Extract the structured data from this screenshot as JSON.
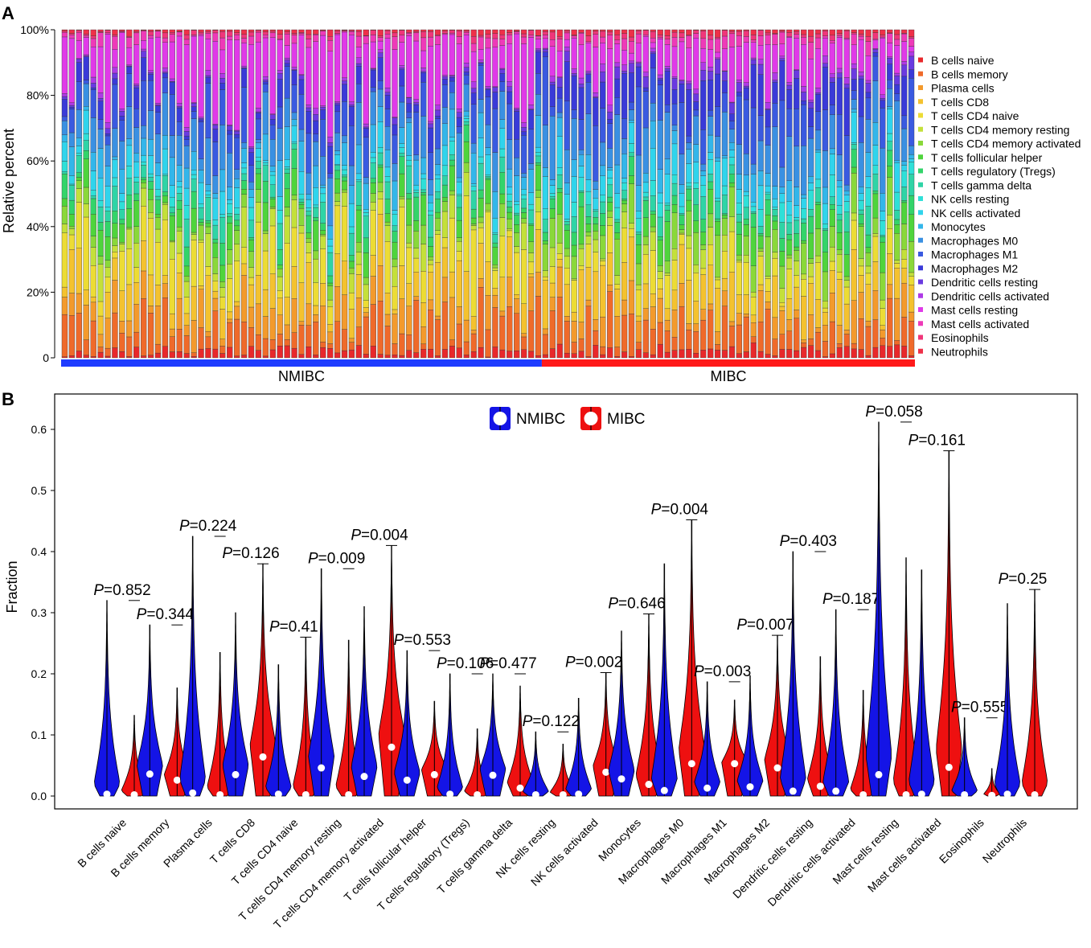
{
  "panel_a": {
    "letter": "A",
    "ylabel": "Relative percent",
    "yticks": [
      "0",
      "20%",
      "40%",
      "60%",
      "80%",
      "100%"
    ],
    "groups": [
      {
        "label": "NMIBC",
        "color": "#1f3cff",
        "count": 67
      },
      {
        "label": "MIBC",
        "color": "#ff1a1a",
        "count": 52
      }
    ],
    "cell_types": [
      {
        "name": "B cells naive",
        "color": "#e8282b"
      },
      {
        "name": "B cells memory",
        "color": "#ef6a2a"
      },
      {
        "name": "Plasma cells",
        "color": "#f39a2c"
      },
      {
        "name": "T cells CD8",
        "color": "#f4c22f"
      },
      {
        "name": "T cells CD4 naive",
        "color": "#ecdc35"
      },
      {
        "name": "T cells CD4 memory resting",
        "color": "#c4e03a"
      },
      {
        "name": "T cells CD4 memory activated",
        "color": "#8ad83a"
      },
      {
        "name": "T cells follicular helper",
        "color": "#4fd43c"
      },
      {
        "name": "T cells regulatory (Tregs)",
        "color": "#33d46a"
      },
      {
        "name": "T cells gamma delta",
        "color": "#2fd4a6"
      },
      {
        "name": "NK cells resting",
        "color": "#2fe0d8"
      },
      {
        "name": "NK cells activated",
        "color": "#30d4ec"
      },
      {
        "name": "Monocytes",
        "color": "#33b6ea"
      },
      {
        "name": "Macrophages M0",
        "color": "#3a90e2"
      },
      {
        "name": "Macrophages M1",
        "color": "#3a5ae0"
      },
      {
        "name": "Macrophages M2",
        "color": "#3a3ad8"
      },
      {
        "name": "Dendritic cells resting",
        "color": "#6a3ae0"
      },
      {
        "name": "Dendritic cells activated",
        "color": "#ae3ae6"
      },
      {
        "name": "Mast cells resting",
        "color": "#e03ae8"
      },
      {
        "name": "Mast cells activated",
        "color": "#ee3ab8"
      },
      {
        "name": "Eosinophils",
        "color": "#f0367a"
      },
      {
        "name": "Neutrophils",
        "color": "#ee3048"
      }
    ]
  },
  "panel_b": {
    "letter": "B",
    "legend": [
      {
        "label": "NMIBC",
        "color": "#1414e6"
      },
      {
        "label": "MIBC",
        "color": "#ee1010"
      }
    ]
  },
  "chart_data": [
    {
      "type": "bar",
      "stacked": true,
      "title": "",
      "ylabel": "Relative percent",
      "xlabel": "",
      "ylim": [
        0,
        100
      ],
      "series_order": [
        "B cells naive",
        "B cells memory",
        "Plasma cells",
        "T cells CD8",
        "T cells CD4 naive",
        "T cells CD4 memory resting",
        "T cells CD4 memory activated",
        "T cells follicular helper",
        "T cells regulatory (Tregs)",
        "T cells gamma delta",
        "NK cells resting",
        "NK cells activated",
        "Monocytes",
        "Macrophages M0",
        "Macrophages M1",
        "Macrophages M2",
        "Dendritic cells resting",
        "Dendritic cells activated",
        "Mast cells resting",
        "Mast cells activated",
        "Eosinophils",
        "Neutrophils"
      ],
      "groups": [
        {
          "label": "NMIBC",
          "n_samples": 67
        },
        {
          "label": "MIBC",
          "n_samples": 52
        }
      ],
      "note": "119 stacked bars, each summing to 100%; individual sample fractions estimated"
    },
    {
      "type": "violin",
      "ylabel": "Fraction",
      "ylim": [
        0,
        0.65
      ],
      "yticks": [
        0.0,
        0.1,
        0.2,
        0.3,
        0.4,
        0.5,
        0.6
      ],
      "categories": [
        "B cells naive",
        "B cells memory",
        "Plasma cells",
        "T cells CD8",
        "T cells CD4 naive",
        "T cells CD4 memory resting",
        "T cells CD4 memory activated",
        "T cells follicular helper",
        "T cells regulatory (Tregs)",
        "T cells gamma delta",
        "NK cells resting",
        "NK cells activated",
        "Monocytes",
        "Macrophages M0",
        "Macrophages M1",
        "Macrophages M2",
        "Dendritic cells resting",
        "Dendritic cells activated",
        "Mast cells resting",
        "Mast cells activated",
        "Eosinophils",
        "Neutrophils"
      ],
      "p_values": [
        "0.852",
        "0.344",
        "0.224",
        "0.126",
        "0.41",
        "0.009",
        "0.004",
        "0.553",
        "0.106",
        "0.477",
        "0.122",
        "0.002",
        "0.646",
        "0.004",
        "0.003",
        "0.007",
        "0.403",
        "0.187",
        "0.058",
        "0.161",
        "0.555",
        "0.25"
      ],
      "p_prefix": "P",
      "series": [
        {
          "name": "NMIBC",
          "max": [
            0.32,
            0.28,
            0.425,
            0.3,
            0.215,
            0.372,
            0.31,
            0.238,
            0.2,
            0.2,
            0.105,
            0.16,
            0.27,
            0.38,
            0.187,
            0.197,
            0.4,
            0.305,
            0.612,
            0.37,
            0.128,
            0.315
          ],
          "median": [
            0.003,
            0.036,
            0.005,
            0.035,
            0.003,
            0.046,
            0.032,
            0.026,
            0.003,
            0.034,
            0.002,
            0.003,
            0.028,
            0.009,
            0.013,
            0.015,
            0.008,
            0.008,
            0.035,
            0.003,
            0.002,
            0.003
          ]
        },
        {
          "name": "MIBC",
          "max": [
            0.132,
            0.177,
            0.235,
            0.38,
            0.26,
            0.255,
            0.41,
            0.155,
            0.11,
            0.18,
            0.085,
            0.202,
            0.298,
            0.452,
            0.157,
            0.263,
            0.228,
            0.173,
            0.39,
            0.565,
            0.045,
            0.338
          ],
          "median": [
            0.002,
            0.026,
            0.002,
            0.064,
            0.002,
            0.002,
            0.08,
            0.035,
            0.002,
            0.013,
            0.002,
            0.039,
            0.019,
            0.053,
            0.053,
            0.046,
            0.016,
            0.002,
            0.002,
            0.047,
            0.001,
            0.002
          ]
        }
      ]
    }
  ]
}
